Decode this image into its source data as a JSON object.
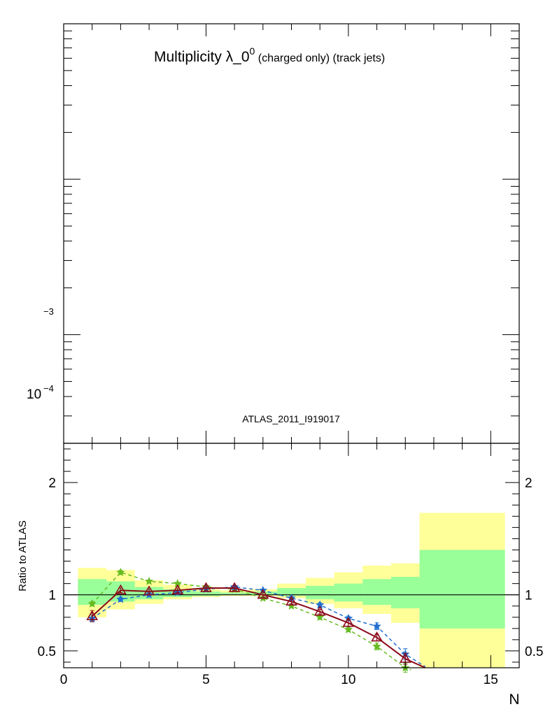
{
  "chart_data": [
    {
      "type": "line",
      "panel": "main",
      "title": "Multiplicity λ_0",
      "title_sup": "0",
      "title_suffix": " (charged only) (track jets)",
      "annotation": "ATLAS_2011_I919017",
      "y_scale": "log",
      "y_tick_labels": [
        {
          "exp_label": "−3",
          "value": 0.001
        },
        {
          "base_label": "10",
          "exp_label": "−4",
          "value": 0.0001
        }
      ],
      "ylim": [
        2e-05,
        0.01
      ]
    },
    {
      "type": "line",
      "panel": "ratio",
      "ylabel": "Ratio to ATLAS",
      "xlabel": "N",
      "xlim": [
        0,
        16
      ],
      "ylim": [
        0.35,
        2.35
      ],
      "x_tick_labels": [
        "0",
        "5",
        "10",
        "15"
      ],
      "y_tick_labels": [
        "0.5",
        "1",
        "2"
      ],
      "reference_line": 1,
      "bands": {
        "edges": [
          0.5,
          1.5,
          2.5,
          3.5,
          4.5,
          5.5,
          6.5,
          7.5,
          8.5,
          9.5,
          10.5,
          11.5,
          12.5,
          15.5
        ],
        "yellow_lo": [
          0.8,
          0.87,
          0.92,
          0.96,
          0.98,
          0.99,
          0.99,
          0.97,
          0.92,
          0.88,
          0.83,
          0.75,
          0.3
        ],
        "yellow_hi": [
          1.24,
          1.22,
          1.13,
          1.09,
          1.05,
          1.04,
          1.05,
          1.1,
          1.15,
          1.2,
          1.26,
          1.28,
          1.73
        ],
        "green_lo": [
          0.91,
          0.94,
          0.96,
          0.98,
          0.99,
          1.0,
          1.0,
          0.99,
          0.96,
          0.94,
          0.91,
          0.88,
          0.7
        ],
        "green_hi": [
          1.14,
          1.12,
          1.07,
          1.05,
          1.03,
          1.02,
          1.03,
          1.06,
          1.08,
          1.1,
          1.14,
          1.16,
          1.4
        ],
        "colors": {
          "yellow": "#ffff99",
          "green": "#99ff99"
        }
      },
      "series": [
        {
          "color": "#8b0a1a",
          "style": "solid",
          "marker": "triangle-open",
          "x": [
            1,
            2,
            3,
            4,
            5,
            6,
            7,
            8,
            9,
            10,
            11,
            12,
            12.7
          ],
          "y": [
            0.81,
            1.04,
            1.03,
            1.04,
            1.06,
            1.06,
            1.0,
            0.94,
            0.85,
            0.75,
            0.62,
            0.43,
            0.35
          ],
          "err": [
            0.05,
            0.02,
            0.02,
            0.02,
            0.02,
            0.02,
            0.02,
            0.02,
            0.02,
            0.03,
            0.03,
            0.05,
            0
          ]
        },
        {
          "color": "#1f6fd0",
          "style": "dashed",
          "marker": "star",
          "x": [
            1,
            2,
            3,
            4,
            5,
            6,
            7,
            8,
            9,
            10,
            11,
            12,
            12.7
          ],
          "y": [
            0.79,
            0.96,
            1.0,
            1.02,
            1.05,
            1.07,
            1.04,
            0.97,
            0.91,
            0.79,
            0.72,
            0.47,
            0.36
          ],
          "err": [
            0.03,
            0.02,
            0.02,
            0.01,
            0.01,
            0.01,
            0.01,
            0.02,
            0.02,
            0.02,
            0.03,
            0.05,
            0
          ]
        },
        {
          "color": "#66bb22",
          "style": "dashed",
          "marker": "star",
          "x": [
            1,
            2,
            3,
            4,
            5,
            6,
            7,
            8,
            9,
            10,
            11,
            12,
            12.2
          ],
          "y": [
            0.92,
            1.2,
            1.12,
            1.1,
            1.07,
            1.05,
            0.97,
            0.9,
            0.8,
            0.69,
            0.54,
            0.35,
            0.33
          ],
          "err": [
            0.02,
            0.02,
            0.01,
            0.01,
            0.01,
            0.01,
            0.01,
            0.01,
            0.02,
            0.02,
            0.03,
            0.04,
            0
          ]
        }
      ]
    }
  ]
}
